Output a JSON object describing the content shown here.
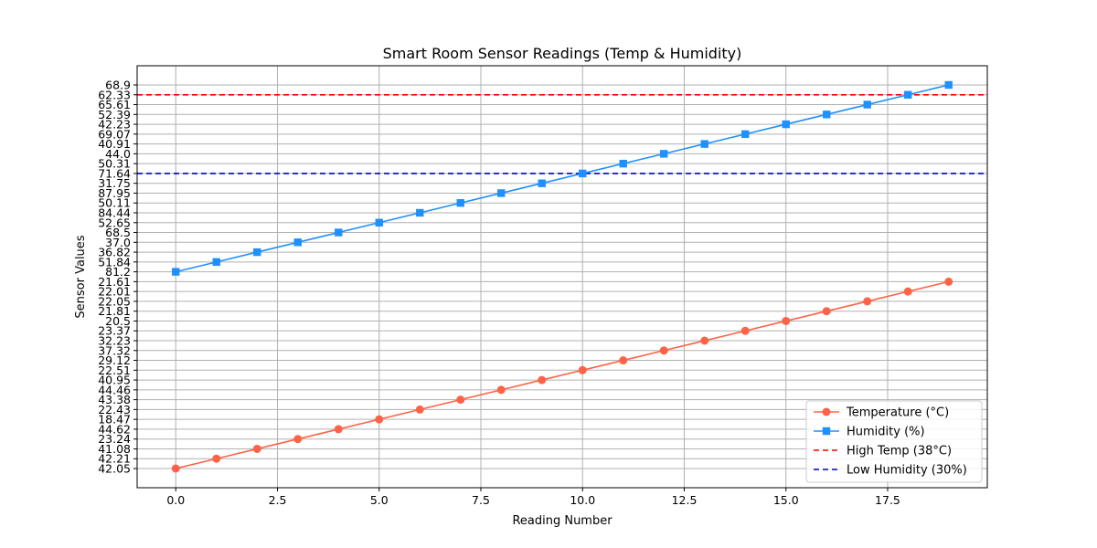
{
  "chart_data": {
    "type": "line",
    "title": "Smart Room Sensor Readings (Temp & Humidity)",
    "xlabel": "Reading Number",
    "ylabel": "Sensor Values",
    "x_ticks": [
      "0.0",
      "2.5",
      "5.0",
      "7.5",
      "10.0",
      "12.5",
      "15.0",
      "17.5"
    ],
    "x_tick_values": [
      0,
      2.5,
      5,
      7.5,
      10,
      12.5,
      15,
      17.5
    ],
    "xlim": [
      -0.95,
      19.95
    ],
    "y_categories": [
      "42.05",
      "42.21",
      "41.08",
      "23.24",
      "44.62",
      "18.47",
      "22.43",
      "43.38",
      "44.46",
      "40.95",
      "22.51",
      "29.12",
      "37.32",
      "32.23",
      "23.37",
      "20.5",
      "21.81",
      "22.05",
      "22.01",
      "21.61",
      "81.2",
      "51.84",
      "36.82",
      "37.0",
      "68.5",
      "52.65",
      "84.44",
      "50.11",
      "87.95",
      "31.75",
      "71.64",
      "50.31",
      "44.0",
      "40.91",
      "69.07",
      "42.23",
      "52.39",
      "65.61",
      "62.33",
      "68.9"
    ],
    "grid": true,
    "legend_position": "lower-right",
    "series": [
      {
        "name": "Temperature (°C)",
        "color": "#ff6347",
        "marker": "circle",
        "x": [
          0,
          1,
          2,
          3,
          4,
          5,
          6,
          7,
          8,
          9,
          10,
          11,
          12,
          13,
          14,
          15,
          16,
          17,
          18,
          19
        ],
        "values": [
          "42.05",
          "42.21",
          "41.08",
          "23.24",
          "44.62",
          "18.47",
          "22.43",
          "43.38",
          "44.46",
          "40.95",
          "22.51",
          "29.12",
          "37.32",
          "32.23",
          "23.37",
          "20.5",
          "21.81",
          "22.05",
          "22.01",
          "21.61"
        ]
      },
      {
        "name": "Humidity (%)",
        "color": "#1e90ff",
        "marker": "square",
        "x": [
          0,
          1,
          2,
          3,
          4,
          5,
          6,
          7,
          8,
          9,
          10,
          11,
          12,
          13,
          14,
          15,
          16,
          17,
          18,
          19
        ],
        "values": [
          "81.2",
          "51.84",
          "36.82",
          "37.0",
          "68.5",
          "52.65",
          "84.44",
          "50.11",
          "87.95",
          "31.75",
          "71.64",
          "50.31",
          "44.0",
          "40.91",
          "69.07",
          "42.23",
          "52.39",
          "65.61",
          "62.33",
          "68.9"
        ]
      }
    ],
    "reference_lines": [
      {
        "name": "High Temp (38°C)",
        "color": "#ff0000",
        "style": "dashed",
        "y_category_index": 38
      },
      {
        "name": "Low Humidity (30%)",
        "color": "#0000cd",
        "style": "dashed",
        "y_category_index": 30
      }
    ]
  }
}
